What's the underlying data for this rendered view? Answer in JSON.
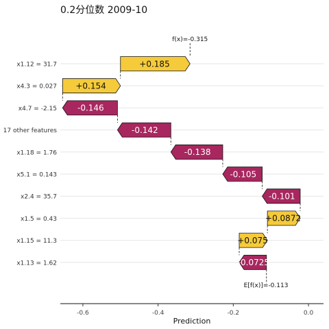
{
  "chart_data": {
    "type": "waterfall",
    "title": "0.2分位数 2009-10",
    "xlabel": "Prediction",
    "ylabel": "",
    "xlim": [
      -0.66,
      0.04
    ],
    "xticks": [
      -0.6,
      -0.4,
      -0.2,
      0.0
    ],
    "xtick_labels": [
      "-0.6",
      "-0.4",
      "-0.2",
      "0.0"
    ],
    "fx": -0.315,
    "fx_label": "f(x)=-0.315",
    "base_value": -0.113,
    "base_label": "E[f(x)]=-0.113",
    "grid": "horizontal",
    "colors": {
      "positive": "#f5cb3b",
      "negative": "#a8275f",
      "edge": "#111111"
    },
    "features": [
      {
        "label": "x1.12 = 31.7",
        "value": 0.185,
        "text": "+0.185"
      },
      {
        "label": "x4.3 = 0.027",
        "value": 0.154,
        "text": "+0.154"
      },
      {
        "label": "x4.7 = -2.15",
        "value": -0.146,
        "text": "-0.146"
      },
      {
        "label": "17 other features",
        "value": -0.142,
        "text": "-0.142"
      },
      {
        "label": "x1.18 = 1.76",
        "value": -0.138,
        "text": "-0.138"
      },
      {
        "label": "x5.1 = 0.143",
        "value": -0.105,
        "text": "-0.105"
      },
      {
        "label": "x2.4 = 35.7",
        "value": -0.101,
        "text": "-0.101"
      },
      {
        "label": "x1.5 = 0.43",
        "value": 0.0872,
        "text": "+0.0872"
      },
      {
        "label": "x1.15 = 11.3",
        "value": 0.075,
        "text": "+0.075"
      },
      {
        "label": "x1.13 = 1.62",
        "value": -0.0725,
        "text": "-0.0725"
      }
    ]
  }
}
